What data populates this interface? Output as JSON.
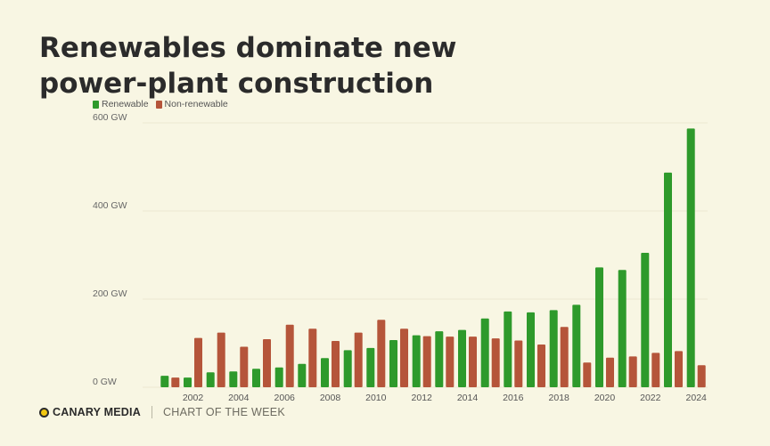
{
  "header": {
    "title": "Renewables dominate new power-plant construction"
  },
  "footer": {
    "brand": "CANARY MEDIA",
    "tagline": "CHART OF THE WEEK"
  },
  "chart_data": {
    "type": "bar",
    "title": "Renewables dominate new power-plant construction",
    "xlabel": "",
    "ylabel": "",
    "categories": [
      "2001",
      "2002",
      "2003",
      "2004",
      "2005",
      "2006",
      "2007",
      "2008",
      "2009",
      "2010",
      "2011",
      "2012",
      "2013",
      "2014",
      "2015",
      "2016",
      "2017",
      "2018",
      "2019",
      "2020",
      "2021",
      "2022",
      "2023",
      "2024"
    ],
    "x_tick_labels": [
      "2002",
      "2004",
      "2006",
      "2008",
      "2010",
      "2012",
      "2014",
      "2016",
      "2018",
      "2020",
      "2022",
      "2024"
    ],
    "y_ticks": [
      0,
      200,
      400,
      600
    ],
    "y_tick_labels": [
      "0 GW",
      "200 GW",
      "400 GW",
      "600 GW"
    ],
    "ylim": [
      0,
      600
    ],
    "legend_position": "top-left",
    "grid": false,
    "series": [
      {
        "name": "Renewable",
        "color": "#2e9a2b",
        "values": [
          26,
          22,
          34,
          36,
          42,
          45,
          53,
          66,
          84,
          89,
          107,
          118,
          127,
          130,
          156,
          172,
          170,
          175,
          187,
          272,
          266,
          305,
          487,
          587
        ]
      },
      {
        "name": "Non-renewable",
        "color": "#b5553a",
        "values": [
          22,
          112,
          124,
          92,
          109,
          142,
          133,
          105,
          124,
          153,
          133,
          116,
          115,
          115,
          111,
          106,
          97,
          137,
          56,
          67,
          70,
          78,
          82,
          50
        ]
      }
    ]
  }
}
